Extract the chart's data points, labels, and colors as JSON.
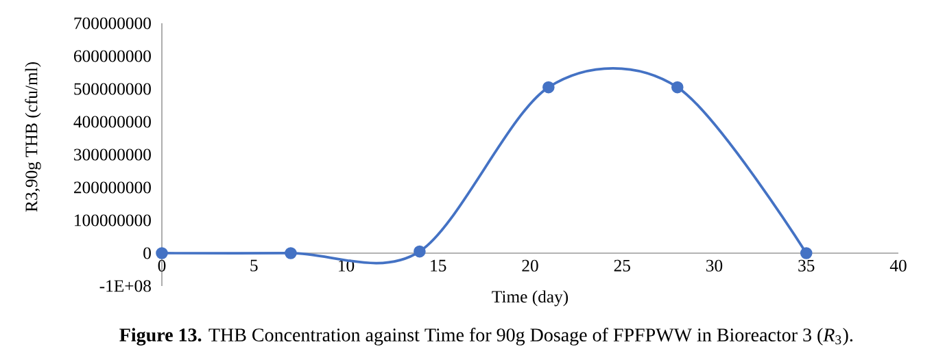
{
  "chart_data": {
    "type": "line",
    "xlabel": "Time (day)",
    "ylabel": "R3,90g THB (cfu/ml)",
    "annotations": [
      "**Figure 13.** THB Concentration against Time for 90g Dosage of FPFPWW in Bioreactor 3 (*R*$_{3}$)."
    ],
    "x": [
      0,
      7,
      14,
      21,
      28,
      35
    ],
    "series": [
      {
        "color": "#4472c4",
        "values": [
          0,
          0,
          5000000,
          505000000,
          505000000,
          0
        ]
      }
    ],
    "xlim": [
      0,
      40
    ],
    "xticks": [
      0,
      5,
      10,
      15,
      20,
      25,
      30,
      35,
      40
    ],
    "ylim": [
      -100000000,
      700000000
    ],
    "yticks": [
      {
        "value": -100000000,
        "label": "-1E+08"
      },
      0,
      100000000,
      200000000,
      300000000,
      400000000,
      500000000,
      600000000,
      700000000
    ],
    "marker": "circle",
    "line_style": "solid",
    "grid": false
  }
}
